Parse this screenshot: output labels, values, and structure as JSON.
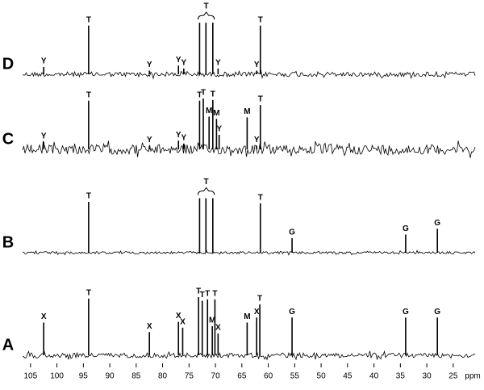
{
  "chart_data": {
    "type": "spectrum",
    "xlabel": "ppm",
    "xlim": [
      106.5,
      20.7
    ],
    "xticks": [
      105,
      100,
      95,
      90,
      85,
      80,
      75,
      70,
      65,
      60,
      55,
      50,
      45,
      40,
      35,
      30,
      25
    ],
    "ylim": [
      0,
      100
    ],
    "color": "#000000",
    "panels": [
      {
        "name": "D",
        "group": "T",
        "peaks": [
          {
            "x": 102.5,
            "value": 10,
            "label": "Y"
          },
          {
            "x": 94,
            "value": 67,
            "label": "T"
          },
          {
            "x": 82.5,
            "value": 5,
            "label": "Y"
          },
          {
            "x": 77,
            "value": 12,
            "label": "Y"
          },
          {
            "x": 76,
            "value": 8,
            "label": "Y"
          },
          {
            "x": 73,
            "value": 71,
            "grouped": true
          },
          {
            "x": 71.8,
            "value": 71,
            "grouped": true
          },
          {
            "x": 70.5,
            "value": 71,
            "grouped": true
          },
          {
            "x": 69.5,
            "value": 8,
            "label": "Y"
          },
          {
            "x": 62.2,
            "value": 5,
            "label": "Y"
          },
          {
            "x": 61.5,
            "value": 67,
            "label": "T"
          }
        ]
      },
      {
        "name": "C",
        "peaks": [
          {
            "x": 102.5,
            "value": 10,
            "label": "Y"
          },
          {
            "x": 94,
            "value": 67,
            "label": "T"
          },
          {
            "x": 82.5,
            "value": 5,
            "label": "Y"
          },
          {
            "x": 77,
            "value": 12,
            "label": "Y"
          },
          {
            "x": 76,
            "value": 8,
            "label": "Y"
          },
          {
            "x": 73,
            "value": 67,
            "label": "T"
          },
          {
            "x": 72.3,
            "value": 70,
            "label": "T"
          },
          {
            "x": 71.2,
            "value": 45,
            "label": "M"
          },
          {
            "x": 70.5,
            "value": 68,
            "label": "T"
          },
          {
            "x": 69.8,
            "value": 42,
            "label": "M"
          },
          {
            "x": 69.3,
            "value": 20,
            "label": "Y"
          },
          {
            "x": 64,
            "value": 44,
            "label": "M"
          },
          {
            "x": 62.2,
            "value": 5,
            "label": "Y"
          },
          {
            "x": 61.5,
            "value": 61,
            "label": "T"
          }
        ]
      },
      {
        "name": "B",
        "group": "T",
        "peaks": [
          {
            "x": 94,
            "value": 70,
            "label": "T"
          },
          {
            "x": 73,
            "value": 75,
            "grouped": true
          },
          {
            "x": 71.8,
            "value": 75,
            "grouped": true
          },
          {
            "x": 70.5,
            "value": 75,
            "grouped": true
          },
          {
            "x": 61.5,
            "value": 68,
            "label": "T"
          },
          {
            "x": 55.5,
            "value": 20,
            "label": "G"
          },
          {
            "x": 34,
            "value": 25,
            "label": "G"
          },
          {
            "x": 28,
            "value": 33,
            "label": "G"
          }
        ]
      },
      {
        "name": "A",
        "peaks": [
          {
            "x": 102.5,
            "value": 45,
            "label": "X"
          },
          {
            "x": 94,
            "value": 78,
            "label": "T"
          },
          {
            "x": 82.5,
            "value": 32,
            "label": "X"
          },
          {
            "x": 77,
            "value": 46,
            "label": "X"
          },
          {
            "x": 76.2,
            "value": 38,
            "label": "X"
          },
          {
            "x": 73.2,
            "value": 80,
            "label": "T"
          },
          {
            "x": 72.5,
            "value": 75,
            "label": "T"
          },
          {
            "x": 71.5,
            "value": 77,
            "label": "T"
          },
          {
            "x": 70.6,
            "value": 40,
            "label": "M"
          },
          {
            "x": 70.1,
            "value": 77,
            "label": "T"
          },
          {
            "x": 69.5,
            "value": 30,
            "label": "X"
          },
          {
            "x": 64,
            "value": 45,
            "label": "M"
          },
          {
            "x": 62.2,
            "value": 52,
            "label": "X"
          },
          {
            "x": 61.6,
            "value": 70,
            "label": "T"
          },
          {
            "x": 55.5,
            "value": 52,
            "label": "G"
          },
          {
            "x": 34,
            "value": 52,
            "label": "G"
          },
          {
            "x": 28,
            "value": 52,
            "label": "G"
          }
        ]
      }
    ]
  }
}
